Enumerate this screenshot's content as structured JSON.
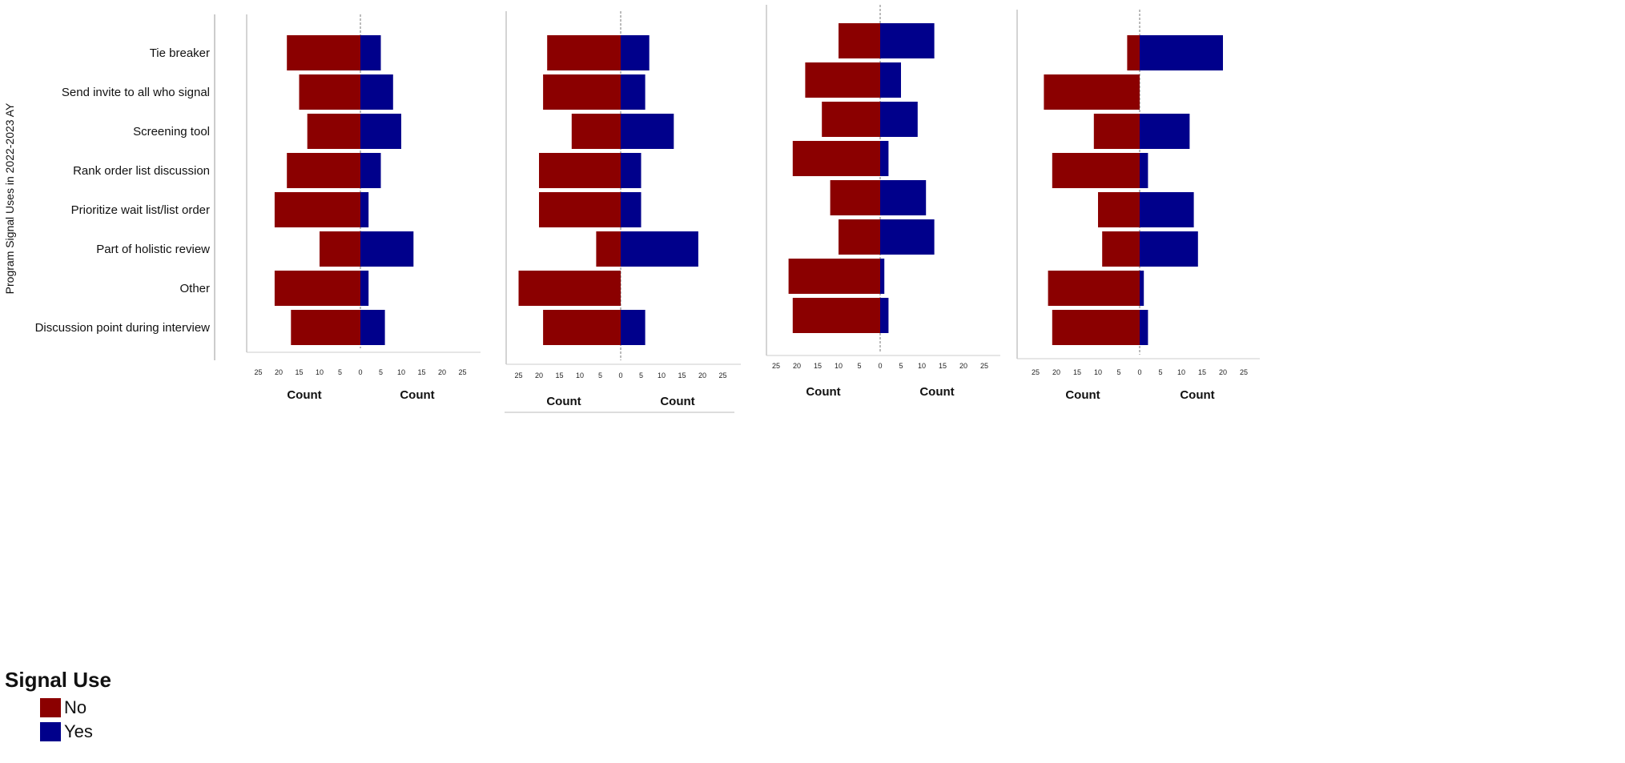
{
  "chart_data": {
    "type": "bar",
    "orientation": "horizontal-diverging",
    "ylabel": "Program Signal Uses in 2022-2023 AY",
    "categories": [
      "Tie breaker",
      "Send invite to all who signal",
      "Screening tool",
      "Rank order list discussion",
      "Prioritize wait list/list order",
      "Part of holistic review",
      "Other",
      "Discussion point during interview"
    ],
    "xlabel_left": "Count",
    "xlabel_right": "Count",
    "ticks_left": [
      "25",
      "20",
      "15",
      "10",
      "5",
      "0"
    ],
    "ticks_right": [
      "5",
      "10",
      "15",
      "20",
      "25"
    ],
    "xlim": [
      0,
      25
    ],
    "colors": {
      "No": "#8b0000",
      "Yes": "#00008b"
    },
    "panels": [
      {
        "series": [
          {
            "name": "No",
            "values": [
              18,
              15,
              13,
              18,
              21,
              10,
              21,
              17
            ]
          },
          {
            "name": "Yes",
            "values": [
              5,
              8,
              10,
              5,
              2,
              13,
              2,
              6
            ]
          }
        ]
      },
      {
        "series": [
          {
            "name": "No",
            "values": [
              18,
              19,
              12,
              20,
              20,
              6,
              25,
              19
            ]
          },
          {
            "name": "Yes",
            "values": [
              7,
              6,
              13,
              5,
              5,
              19,
              0,
              6
            ]
          }
        ]
      },
      {
        "series": [
          {
            "name": "No",
            "values": [
              10,
              18,
              14,
              21,
              12,
              10,
              22,
              21
            ]
          },
          {
            "name": "Yes",
            "values": [
              13,
              5,
              9,
              2,
              11,
              13,
              1,
              2
            ]
          }
        ]
      },
      {
        "series": [
          {
            "name": "No",
            "values": [
              3,
              23,
              11,
              21,
              10,
              9,
              22,
              21
            ]
          },
          {
            "name": "Yes",
            "values": [
              20,
              0,
              12,
              2,
              13,
              14,
              1,
              2
            ]
          }
        ]
      }
    ]
  },
  "legend": {
    "title": "Signal Use",
    "items": [
      {
        "label": "No",
        "color": "#8b0000"
      },
      {
        "label": "Yes",
        "color": "#00008b"
      }
    ]
  }
}
